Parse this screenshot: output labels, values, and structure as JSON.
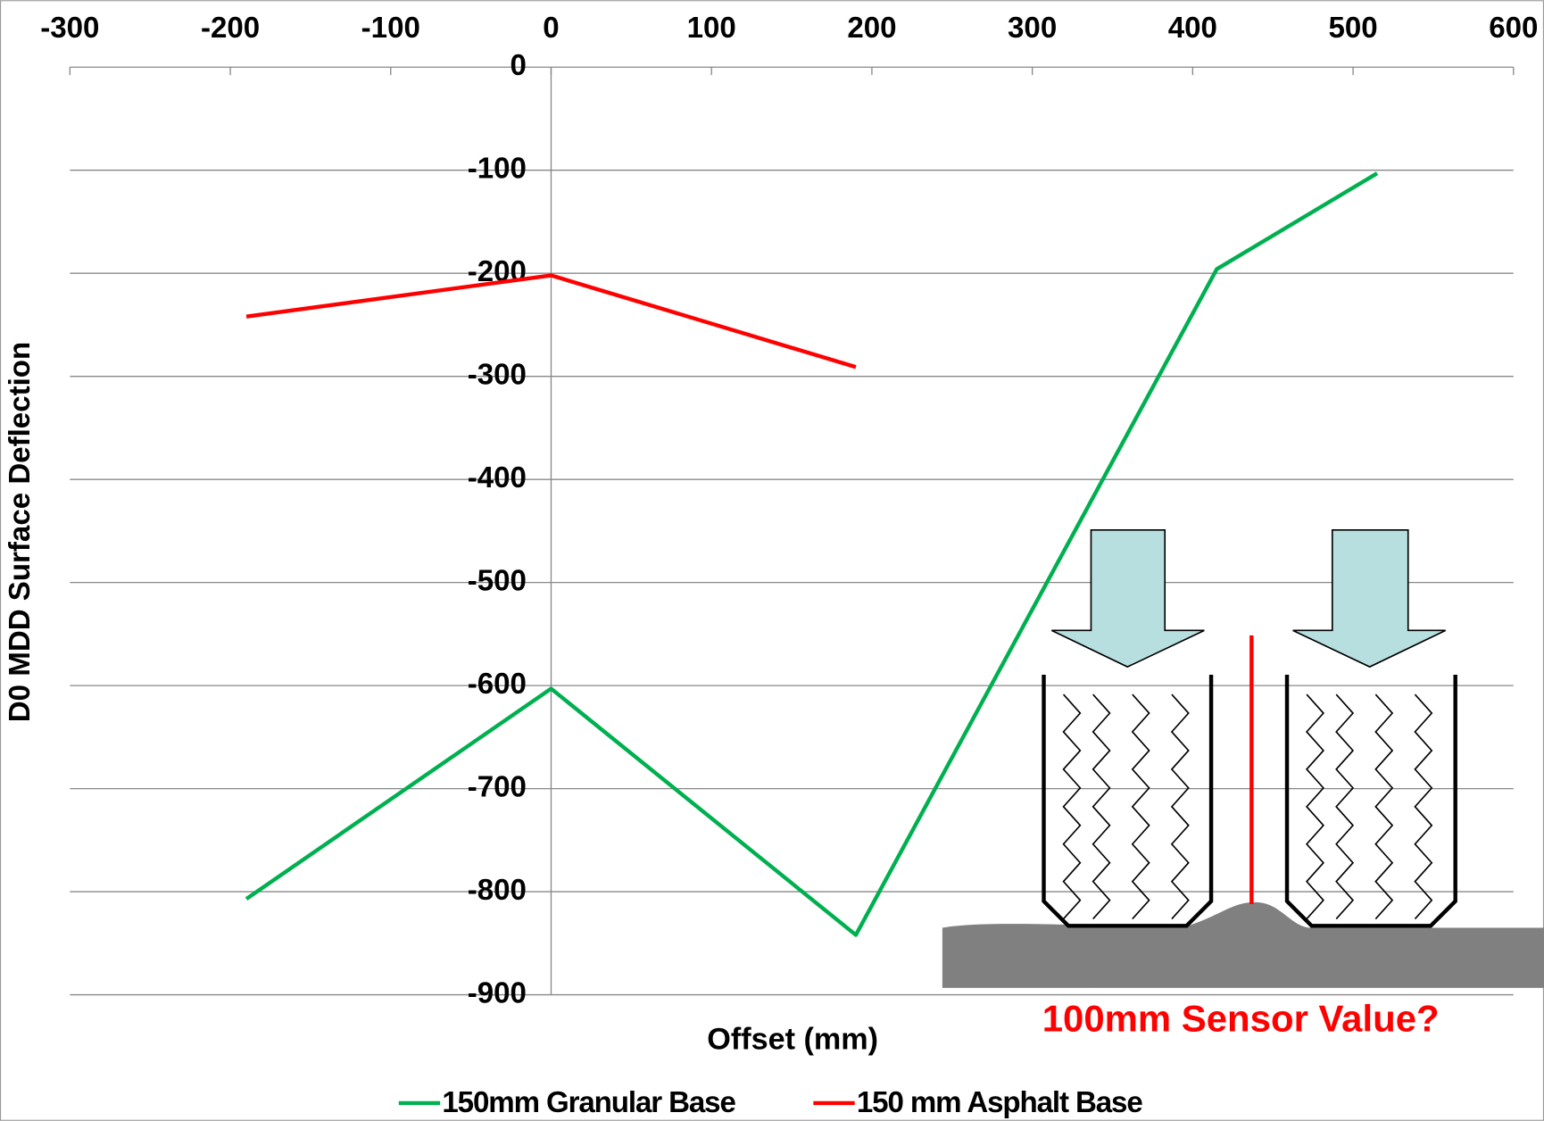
{
  "chart_data": {
    "type": "line",
    "x_label": "Offset (mm)",
    "y_label": "D0 MDD Surface Deflection",
    "annotation": "100mm Sensor Value?",
    "xlim": [
      -300,
      600
    ],
    "xticks": [
      -300,
      -200,
      -100,
      0,
      100,
      200,
      300,
      400,
      500,
      600
    ],
    "ylim": [
      -900,
      0
    ],
    "yticks": [
      0,
      -100,
      -200,
      -300,
      -400,
      -500,
      -600,
      -700,
      -800,
      -900
    ],
    "grid": true,
    "legend": "bottom",
    "series": [
      {
        "name": "150mm Granular Base",
        "color": "#00b050",
        "x": [
          -190,
          0,
          190,
          415,
          515
        ],
        "values": [
          -807,
          -603,
          -842,
          -196,
          -103
        ]
      },
      {
        "name": "150 mm Asphalt Base",
        "color": "#ff0000",
        "x": [
          -190,
          0,
          190
        ],
        "values": [
          -242,
          -202,
          -291
        ]
      }
    ]
  }
}
